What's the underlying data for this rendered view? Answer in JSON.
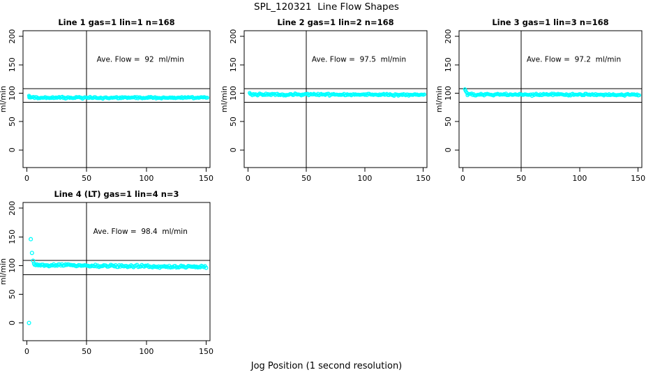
{
  "page": {
    "title": "SPL_120321  Line Flow Shapes",
    "xlabel": "Jog Position (1 second resolution)"
  },
  "chart_data": [
    {
      "type": "scatter",
      "title": "Line 1 gas=1 lin=1 n=168",
      "annotation": "Ave. Flow =  92  ml/min",
      "ave_flow": 92,
      "n": 168,
      "ylabel": "ml/min",
      "xlim": [
        -3.2,
        153.2
      ],
      "ylim": [
        -31,
        210
      ],
      "xticks": [
        0,
        50,
        100,
        150
      ],
      "yticks": [
        0,
        50,
        100,
        150,
        200
      ],
      "vline_x": 50,
      "hlines_y": [
        108,
        84
      ],
      "marker_color": "#00ffff",
      "annotation_pos": [
        95,
        155
      ],
      "lead_points": [
        [
          1.8,
          95.5
        ],
        [
          2.2,
          94
        ],
        [
          3,
          93
        ]
      ],
      "band": {
        "x_from": 2,
        "x_to": 151,
        "y_start": 92,
        "y_end": 92,
        "noise": 1.5,
        "n": 168
      }
    },
    {
      "type": "scatter",
      "title": "Line 2 gas=1 lin=2 n=168",
      "annotation": "Ave. Flow =  97.5  ml/min",
      "ave_flow": 97.5,
      "n": 168,
      "ylabel": "ml/min",
      "xlim": [
        -3.2,
        153.2
      ],
      "ylim": [
        -31,
        210
      ],
      "xticks": [
        0,
        50,
        100,
        150
      ],
      "yticks": [
        0,
        50,
        100,
        150,
        200
      ],
      "vline_x": 50,
      "hlines_y": [
        108,
        84
      ],
      "marker_color": "#00ffff",
      "annotation_pos": [
        95,
        155
      ],
      "lead_points": [
        [
          1.5,
          100.5
        ]
      ],
      "band": {
        "x_from": 2,
        "x_to": 151,
        "y_start": 97.8,
        "y_end": 97.3,
        "noise": 1.7,
        "n": 168
      }
    },
    {
      "type": "scatter",
      "title": "Line 3 gas=1 lin=3 n=168",
      "annotation": "Ave. Flow =  97.2  ml/min",
      "ave_flow": 97.2,
      "n": 168,
      "ylabel": "ml/min",
      "xlim": [
        -3.2,
        153.2
      ],
      "ylim": [
        -31,
        210
      ],
      "xticks": [
        0,
        50,
        100,
        150
      ],
      "yticks": [
        0,
        50,
        100,
        150,
        200
      ],
      "vline_x": 50,
      "hlines_y": [
        108,
        84
      ],
      "marker_color": "#00ffff",
      "annotation_pos": [
        95,
        155
      ],
      "lead_points": [
        [
          1.8,
          107
        ],
        [
          2.3,
          104.5
        ],
        [
          3,
          102
        ],
        [
          3.8,
          99.8
        ]
      ],
      "band": {
        "x_from": 4,
        "x_to": 151,
        "y_start": 97.5,
        "y_end": 97.2,
        "noise": 1.7,
        "n": 166
      }
    },
    {
      "type": "scatter",
      "title": "Line 4 (LT) gas=1 lin=4 n=3",
      "annotation": "Ave. Flow =  98.4  ml/min",
      "ave_flow": 98.4,
      "n": 3,
      "ylabel": "ml/min",
      "xlim": [
        -3.2,
        153.2
      ],
      "ylim": [
        -31,
        210
      ],
      "xticks": [
        0,
        50,
        100,
        150
      ],
      "yticks": [
        0,
        50,
        100,
        150,
        200
      ],
      "vline_x": 50,
      "hlines_y": [
        109,
        84
      ],
      "marker_color": "#00ffff",
      "annotation_pos": [
        95,
        155
      ],
      "lead_points": [
        [
          1.8,
          0
        ],
        [
          3.3,
          146
        ],
        [
          4.3,
          122
        ],
        [
          5.2,
          108.5
        ],
        [
          6,
          103.5
        ]
      ],
      "band": {
        "x_from": 6.5,
        "x_to": 150,
        "y_start": 101,
        "y_end": 97.4,
        "noise": 2.0,
        "n": 145
      }
    }
  ]
}
